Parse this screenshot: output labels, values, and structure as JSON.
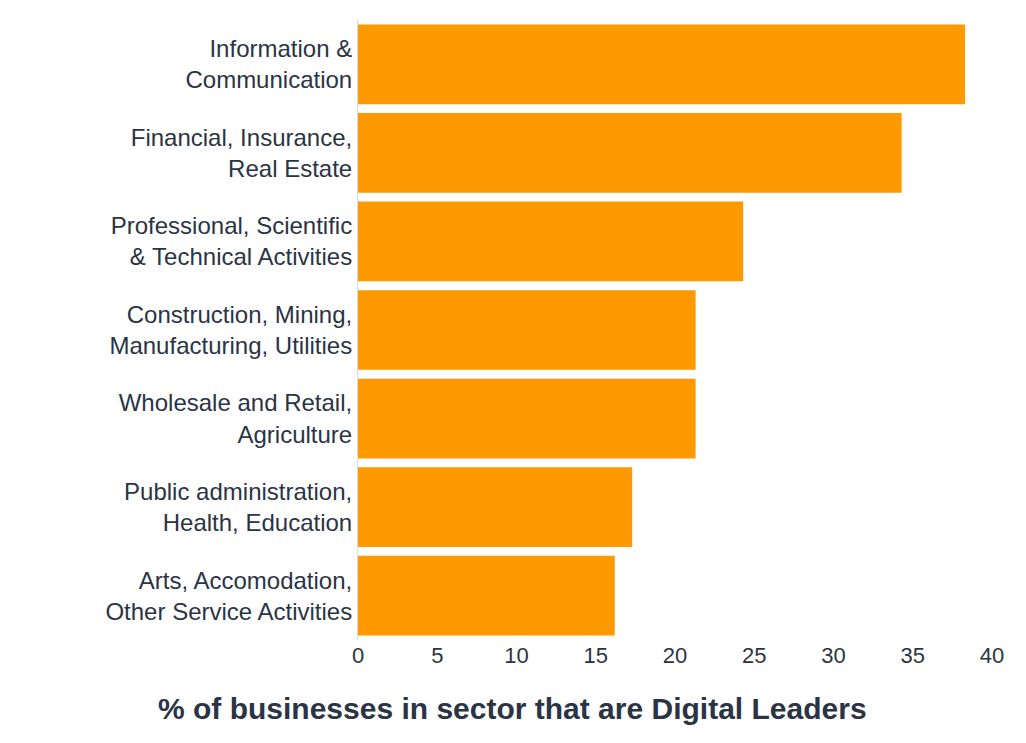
{
  "chart_data": {
    "type": "bar",
    "orientation": "horizontal",
    "xlabel": "% of businesses in sector that are Digital Leaders",
    "categories": [
      "Information &\nCommunication",
      "Financial, Insurance,\nReal Estate",
      "Professional, Scientific\n& Technical Activities",
      "Construction, Mining,\nManufacturing, Utilities",
      "Wholesale and Retail,\nAgriculture",
      "Public administration,\nHealth, Education",
      "Arts, Accomodation,\nOther Service Activities"
    ],
    "values": [
      38.3,
      34.3,
      24.3,
      21.3,
      21.3,
      17.3,
      16.2
    ],
    "color": "#ff9900",
    "xlim": [
      0,
      40
    ],
    "xticks": [
      0,
      5,
      10,
      15,
      20,
      25,
      30,
      35,
      40
    ],
    "grid": false,
    "data_labels": false
  }
}
